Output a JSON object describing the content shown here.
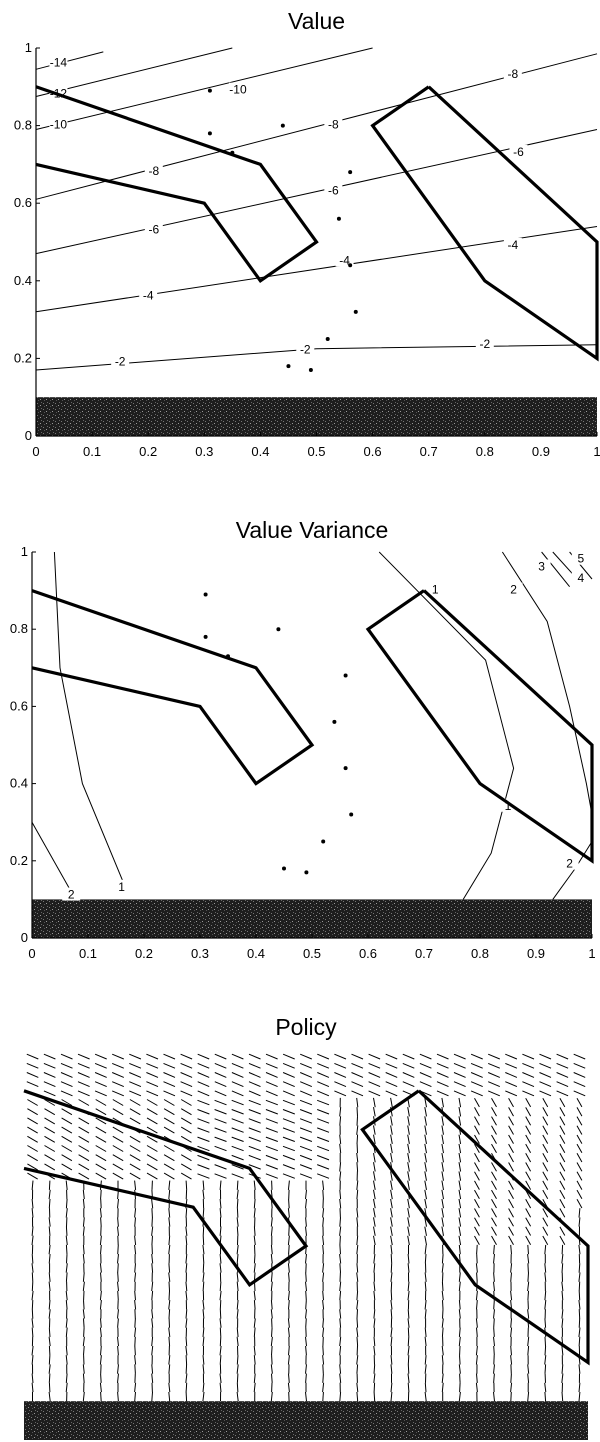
{
  "figure": {
    "colors": {
      "ink": "#000000",
      "band": "#1e1e1e",
      "background": "#ffffff"
    }
  },
  "chart_data": [
    {
      "type": "contour",
      "title": "Value",
      "xlabel": "",
      "ylabel": "",
      "xlim": [
        0,
        1
      ],
      "ylim": [
        0,
        1
      ],
      "grid": false,
      "xticks": [
        "0",
        "0.1",
        "0.2",
        "0.3",
        "0.4",
        "0.5",
        "0.6",
        "0.7",
        "0.8",
        "0.9",
        "1"
      ],
      "yticks": [
        "0",
        "0.2",
        "0.4",
        "0.6",
        "0.8",
        "1"
      ],
      "obstacles": [
        [
          [
            0,
            0.9
          ],
          [
            0.4,
            0.7
          ],
          [
            0.5,
            0.5
          ],
          [
            0.4,
            0.4
          ],
          [
            0.3,
            0.6
          ],
          [
            0,
            0.7
          ]
        ],
        [
          [
            0.7,
            0.9
          ],
          [
            1,
            0.5
          ],
          [
            1,
            0.2
          ],
          [
            0.8,
            0.4
          ],
          [
            0.6,
            0.8
          ],
          [
            0.7,
            0.9
          ]
        ]
      ],
      "band": {
        "y0": 0,
        "y1": 0.1
      },
      "sample_points": [
        [
          0.31,
          0.89
        ],
        [
          0.31,
          0.78
        ],
        [
          0.44,
          0.8
        ],
        [
          0.56,
          0.68
        ],
        [
          0.54,
          0.56
        ],
        [
          0.56,
          0.44
        ],
        [
          0.57,
          0.32
        ],
        [
          0.52,
          0.25
        ],
        [
          0.45,
          0.18
        ],
        [
          0.49,
          0.17
        ],
        [
          0.35,
          0.73
        ]
      ],
      "contours": [
        {
          "label": "-14",
          "points": [
            [
              0.0,
              0.945
            ],
            [
              0.12,
              0.99
            ]
          ],
          "label_pos": [
            0.04,
            0.96
          ]
        },
        {
          "label": "-12",
          "points": [
            [
              0.0,
              0.875
            ],
            [
              0.35,
              1.0
            ]
          ],
          "label_pos": [
            0.04,
            0.88
          ]
        },
        {
          "label": "-10",
          "points": [
            [
              0.0,
              0.79
            ],
            [
              0.6,
              1.0
            ]
          ],
          "label_pos": [
            0.04,
            0.8
          ],
          "extra_labels": [
            [
              0.36,
              0.89
            ]
          ]
        },
        {
          "label": "-8",
          "points": [
            [
              0.0,
              0.61
            ],
            [
              1.0,
              0.985
            ]
          ],
          "label_pos": [
            0.21,
            0.68
          ],
          "extra_labels": [
            [
              0.53,
              0.8
            ],
            [
              0.85,
              0.93
            ]
          ]
        },
        {
          "label": "-6",
          "points": [
            [
              0.0,
              0.47
            ],
            [
              1.0,
              0.79
            ]
          ],
          "label_pos": [
            0.21,
            0.53
          ],
          "extra_labels": [
            [
              0.53,
              0.63
            ],
            [
              0.86,
              0.73
            ]
          ]
        },
        {
          "label": "-4",
          "points": [
            [
              0.0,
              0.32
            ],
            [
              1.0,
              0.54
            ]
          ],
          "label_pos": [
            0.2,
            0.36
          ],
          "extra_labels": [
            [
              0.55,
              0.45
            ],
            [
              0.85,
              0.49
            ]
          ]
        },
        {
          "label": "-2",
          "points": [
            [
              0.0,
              0.17
            ],
            [
              0.5,
              0.225
            ],
            [
              1.0,
              0.235
            ]
          ],
          "label_pos": [
            0.15,
            0.19
          ],
          "extra_labels": [
            [
              0.48,
              0.22
            ],
            [
              0.8,
              0.235
            ]
          ]
        }
      ]
    },
    {
      "type": "contour",
      "title": "Value Variance",
      "xlabel": "",
      "ylabel": "",
      "xlim": [
        0,
        1
      ],
      "ylim": [
        0,
        1
      ],
      "grid": false,
      "xticks": [
        "0",
        "0.1",
        "0.2",
        "0.3",
        "0.4",
        "0.5",
        "0.6",
        "0.7",
        "0.8",
        "0.9",
        "1"
      ],
      "yticks": [
        "0",
        "0.2",
        "0.4",
        "0.6",
        "0.8",
        "1"
      ],
      "obstacles": [
        [
          [
            0,
            0.9
          ],
          [
            0.4,
            0.7
          ],
          [
            0.5,
            0.5
          ],
          [
            0.4,
            0.4
          ],
          [
            0.3,
            0.6
          ],
          [
            0,
            0.7
          ]
        ],
        [
          [
            0.7,
            0.9
          ],
          [
            1,
            0.5
          ],
          [
            1,
            0.2
          ],
          [
            0.8,
            0.4
          ],
          [
            0.6,
            0.8
          ],
          [
            0.7,
            0.9
          ]
        ]
      ],
      "band": {
        "y0": 0,
        "y1": 0.1
      },
      "sample_points": [
        [
          0.31,
          0.89
        ],
        [
          0.31,
          0.78
        ],
        [
          0.44,
          0.8
        ],
        [
          0.56,
          0.68
        ],
        [
          0.54,
          0.56
        ],
        [
          0.56,
          0.44
        ],
        [
          0.57,
          0.32
        ],
        [
          0.52,
          0.25
        ],
        [
          0.45,
          0.18
        ],
        [
          0.49,
          0.17
        ],
        [
          0.35,
          0.73
        ]
      ],
      "contours": [
        {
          "label": "1",
          "points": [
            [
              0.04,
              1.0
            ],
            [
              0.05,
              0.7
            ],
            [
              0.09,
              0.4
            ],
            [
              0.17,
              0.12
            ]
          ],
          "label_pos": [
            0.16,
            0.13
          ]
        },
        {
          "label": "2",
          "points": [
            [
              0.0,
              0.3
            ],
            [
              0.07,
              0.12
            ]
          ],
          "label_pos": [
            0.07,
            0.11
          ]
        },
        {
          "label": "1",
          "points": [
            [
              0.62,
              1.0
            ],
            [
              0.81,
              0.72
            ],
            [
              0.86,
              0.44
            ],
            [
              0.82,
              0.22
            ],
            [
              0.77,
              0.1
            ]
          ],
          "label_pos": [
            0.85,
            0.34
          ],
          "extra_labels": [
            [
              0.72,
              0.9
            ]
          ]
        },
        {
          "label": "2",
          "points": [
            [
              0.84,
              1.0
            ],
            [
              0.92,
              0.82
            ],
            [
              0.96,
              0.6
            ],
            [
              0.99,
              0.4
            ],
            [
              1.0,
              0.32
            ]
          ],
          "label_pos": [
            0.86,
            0.9
          ]
        },
        {
          "label": "2",
          "points": [
            [
              1.0,
              0.25
            ],
            [
              0.97,
              0.18
            ],
            [
              0.93,
              0.1
            ]
          ],
          "label_pos": [
            0.96,
            0.19
          ]
        },
        {
          "label": "3",
          "points": [
            [
              0.91,
              1.0
            ],
            [
              0.96,
              0.91
            ]
          ],
          "label_pos": [
            0.91,
            0.96
          ]
        },
        {
          "label": "4",
          "points": [
            [
              0.93,
              1.0
            ],
            [
              0.98,
              0.92
            ]
          ],
          "label_pos": [
            0.98,
            0.93
          ]
        },
        {
          "label": "5",
          "points": [
            [
              0.96,
              1.0
            ],
            [
              1.0,
              0.93
            ]
          ],
          "label_pos": [
            0.98,
            0.98
          ]
        }
      ]
    },
    {
      "type": "vector_field",
      "title": "Policy",
      "xlabel": "",
      "ylabel": "",
      "xlim": [
        0,
        1
      ],
      "ylim": [
        0,
        1
      ],
      "axes": false,
      "obstacles": [
        [
          [
            0,
            0.9
          ],
          [
            0.4,
            0.7
          ],
          [
            0.5,
            0.5
          ],
          [
            0.4,
            0.4
          ],
          [
            0.3,
            0.6
          ],
          [
            0,
            0.7
          ]
        ],
        [
          [
            0.7,
            0.9
          ],
          [
            1,
            0.5
          ],
          [
            1,
            0.2
          ],
          [
            0.8,
            0.4
          ],
          [
            0.6,
            0.8
          ],
          [
            0.7,
            0.9
          ]
        ]
      ],
      "band": {
        "y0": 0,
        "y1": 0.1
      },
      "grid_cols": 33,
      "grid_rows": 38
    }
  ]
}
